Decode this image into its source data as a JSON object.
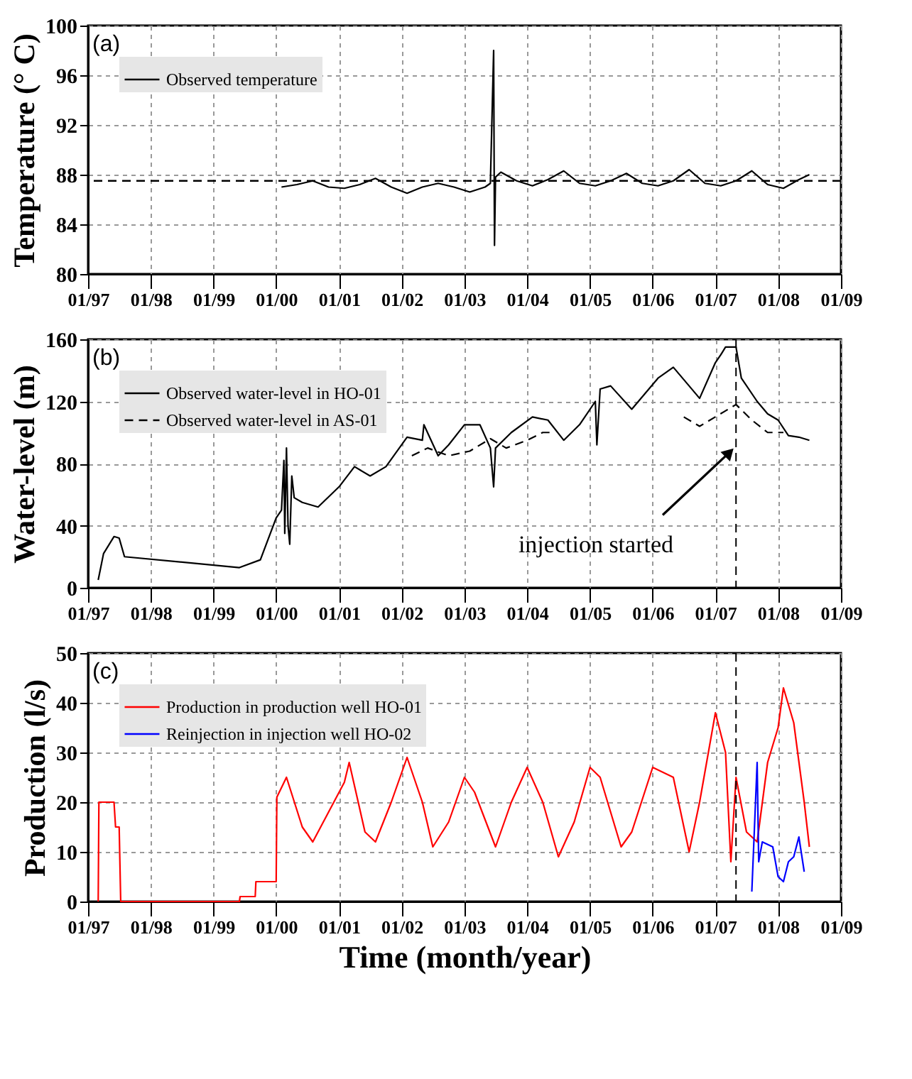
{
  "chart_data": [
    {
      "type": "line",
      "ylabel": "Temperature (° C)",
      "annotations": [
        "(a)"
      ],
      "xlim": [
        "1997-01",
        "2009-01"
      ],
      "xticks": [
        {
          "value": "1997-01",
          "label": "01/97"
        },
        {
          "value": "1998-01",
          "label": "01/98"
        },
        {
          "value": "1999-01",
          "label": "01/99"
        },
        {
          "value": "2000-01",
          "label": "01/00"
        },
        {
          "value": "2001-01",
          "label": "01/01"
        },
        {
          "value": "2002-01",
          "label": "01/02"
        },
        {
          "value": "2003-01",
          "label": "01/03"
        },
        {
          "value": "2004-01",
          "label": "01/04"
        },
        {
          "value": "2005-01",
          "label": "01/05"
        },
        {
          "value": "2006-01",
          "label": "01/06"
        },
        {
          "value": "2007-01",
          "label": "01/07"
        },
        {
          "value": "2008-01",
          "label": "01/08"
        },
        {
          "value": "2009-01",
          "label": "01/09"
        }
      ],
      "ylim": [
        80,
        100
      ],
      "yticks": [
        80,
        84,
        88,
        92,
        96,
        100
      ],
      "grid": true,
      "legend": "top left",
      "marker": "none",
      "ref_lines": [
        {
          "axis": "y",
          "value": 87.5,
          "color": "#000000",
          "line_style": "dashed"
        }
      ],
      "series": [
        {
          "name": "Observed temperature",
          "color": "#000000",
          "line_style": "solid",
          "x": [
            "2000-02",
            "2000-05",
            "2000-08",
            "2000-11",
            "2001-02",
            "2001-05",
            "2001-08",
            "2001-11",
            "2002-02",
            "2002-05",
            "2002-08",
            "2002-11",
            "2003-02",
            "2003-05",
            "2003-06",
            "2003-06-20",
            "2003-06-25",
            "2003-07",
            "2003-08",
            "2003-11",
            "2004-02",
            "2004-05",
            "2004-08",
            "2004-11",
            "2005-02",
            "2005-05",
            "2005-08",
            "2005-11",
            "2006-02",
            "2006-05",
            "2006-08",
            "2006-11",
            "2007-02",
            "2007-05",
            "2007-08",
            "2007-11",
            "2008-02",
            "2008-05",
            "2008-07"
          ],
          "values": [
            87.0,
            87.2,
            87.5,
            87.0,
            86.9,
            87.2,
            87.7,
            87.0,
            86.5,
            87.0,
            87.3,
            87.0,
            86.6,
            87.0,
            87.3,
            98.0,
            82.3,
            87.8,
            88.2,
            87.5,
            87.1,
            87.6,
            88.3,
            87.3,
            87.1,
            87.5,
            88.1,
            87.3,
            87.1,
            87.5,
            88.4,
            87.3,
            87.1,
            87.5,
            88.3,
            87.2,
            86.9,
            87.6,
            88.0
          ]
        }
      ]
    },
    {
      "type": "line",
      "ylabel": "Water-level (m)",
      "annotations": [
        "(b)",
        {
          "text": "injection started",
          "x": "2007-04",
          "y": 88
        }
      ],
      "xlim": [
        "1997-01",
        "2009-01"
      ],
      "xticks": [
        {
          "value": "1997-01",
          "label": "01/97"
        },
        {
          "value": "1998-01",
          "label": "01/98"
        },
        {
          "value": "1999-01",
          "label": "01/99"
        },
        {
          "value": "2000-01",
          "label": "01/00"
        },
        {
          "value": "2001-01",
          "label": "01/01"
        },
        {
          "value": "2002-01",
          "label": "01/02"
        },
        {
          "value": "2003-01",
          "label": "01/03"
        },
        {
          "value": "2004-01",
          "label": "01/04"
        },
        {
          "value": "2005-01",
          "label": "01/05"
        },
        {
          "value": "2006-01",
          "label": "01/06"
        },
        {
          "value": "2007-01",
          "label": "01/07"
        },
        {
          "value": "2008-01",
          "label": "01/08"
        },
        {
          "value": "2009-01",
          "label": "01/09"
        }
      ],
      "ylim": [
        0,
        160
      ],
      "yticks": [
        0,
        40,
        80,
        120,
        160
      ],
      "grid": true,
      "legend": "top left",
      "marker": "none",
      "ref_lines": [
        {
          "axis": "x",
          "value": "2007-05",
          "color": "#000000",
          "line_style": "dashed"
        }
      ],
      "series": [
        {
          "name": "Observed water-level in HO-01",
          "color": "#000000",
          "line_style": "solid",
          "x": [
            "1997-03",
            "1997-04",
            "1997-06",
            "1997-07",
            "1997-08",
            "1999-06",
            "1999-10",
            "2000-01",
            "2000-02",
            "2000-02-15",
            "2000-02-20",
            "2000-03",
            "2000-03-10",
            "2000-03-20",
            "2000-04",
            "2000-04-15",
            "2000-06",
            "2000-09",
            "2001-01",
            "2001-04",
            "2001-07",
            "2001-10",
            "2002-02",
            "2002-05",
            "2002-05-10",
            "2002-08",
            "2002-10",
            "2003-01",
            "2003-04",
            "2003-06",
            "2003-06-20",
            "2003-07",
            "2003-10",
            "2004-02",
            "2004-05",
            "2004-08",
            "2004-11",
            "2005-02",
            "2005-02-10",
            "2005-03",
            "2005-05",
            "2005-09",
            "2006-02",
            "2006-05",
            "2006-08",
            "2006-10",
            "2007-01",
            "2007-02",
            "2007-03",
            "2007-05",
            "2007-06",
            "2007-09",
            "2007-11",
            "2008-01",
            "2008-03",
            "2008-05",
            "2008-07"
          ],
          "values": [
            5,
            22,
            33,
            32,
            20,
            13,
            18,
            45,
            50,
            82,
            35,
            90,
            40,
            28,
            72,
            58,
            55,
            52,
            65,
            78,
            72,
            78,
            97,
            95,
            105,
            85,
            92,
            105,
            105,
            90,
            65,
            90,
            100,
            110,
            108,
            95,
            105,
            120,
            92,
            128,
            130,
            115,
            135,
            142,
            130,
            122,
            145,
            150,
            155,
            155,
            135,
            120,
            112,
            108,
            98,
            97,
            95
          ]
        },
        {
          "name": "Observed water-level in AS-01",
          "color": "#000000",
          "line_style": "dashed",
          "x": [
            "2002-03",
            "2002-06",
            "2002-10",
            "2003-02",
            "2003-06",
            "2003-09",
            "2004-01",
            "2004-04",
            "2004-06",
            "2005-06",
            "2006-07",
            "2006-10",
            "2007-05",
            "2007-08",
            "2007-11",
            "2008-02"
          ],
          "values": [
            85,
            90,
            85,
            88,
            96,
            90,
            95,
            100,
            100,
            null,
            110,
            104,
            118,
            108,
            100,
            100
          ]
        }
      ]
    },
    {
      "type": "line",
      "ylabel": "Production (l/s)",
      "xlabel": "Time (month/year)",
      "annotations": [
        "(c)"
      ],
      "xlim": [
        "1997-01",
        "2009-01"
      ],
      "xticks": [
        {
          "value": "1997-01",
          "label": "01/97"
        },
        {
          "value": "1998-01",
          "label": "01/98"
        },
        {
          "value": "1999-01",
          "label": "01/99"
        },
        {
          "value": "2000-01",
          "label": "01/00"
        },
        {
          "value": "2001-01",
          "label": "01/01"
        },
        {
          "value": "2002-01",
          "label": "01/02"
        },
        {
          "value": "2003-01",
          "label": "01/03"
        },
        {
          "value": "2004-01",
          "label": "01/04"
        },
        {
          "value": "2005-01",
          "label": "01/05"
        },
        {
          "value": "2006-01",
          "label": "01/06"
        },
        {
          "value": "2007-01",
          "label": "01/07"
        },
        {
          "value": "2008-01",
          "label": "01/08"
        },
        {
          "value": "2009-01",
          "label": "01/09"
        }
      ],
      "ylim": [
        0,
        50
      ],
      "yticks": [
        0,
        10,
        20,
        30,
        40,
        50
      ],
      "grid": true,
      "legend": "top left",
      "marker": "none",
      "ref_lines": [
        {
          "axis": "x",
          "value": "2007-05",
          "color": "#000000",
          "line_style": "dashed"
        }
      ],
      "series": [
        {
          "name": "Production in production well HO-01",
          "color": "#ff0000",
          "line_style": "solid",
          "x": [
            "1997-03",
            "1997-03-05",
            "1997-06",
            "1997-06-10",
            "1997-07",
            "1997-07-10",
            "1999-06",
            "1999-06-05",
            "1999-09",
            "1999-09-05",
            "1999-12",
            "2000-01",
            "2000-01-05",
            "2000-03",
            "2000-06",
            "2000-08",
            "2000-11",
            "2001-02",
            "2001-03",
            "2001-06",
            "2001-08",
            "2001-11",
            "2002-02",
            "2002-05",
            "2002-07",
            "2002-10",
            "2003-01",
            "2003-03",
            "2003-07",
            "2003-10",
            "2004-01",
            "2004-04",
            "2004-07",
            "2004-10",
            "2005-01",
            "2005-03",
            "2005-07",
            "2005-09",
            "2006-01",
            "2006-05",
            "2006-08",
            "2006-10",
            "2007-01",
            "2007-03",
            "2007-04",
            "2007-05",
            "2007-07",
            "2007-09",
            "2007-11",
            "2008-01",
            "2008-02",
            "2008-04",
            "2008-06",
            "2008-07"
          ],
          "values": [
            0,
            20,
            20,
            15,
            15,
            0,
            0,
            1,
            1,
            4,
            4,
            4,
            21,
            25,
            15,
            12,
            18,
            24,
            28,
            14,
            12,
            20,
            29,
            20,
            11,
            16,
            25,
            22,
            11,
            20,
            27,
            20,
            9,
            16,
            27,
            25,
            11,
            14,
            27,
            25,
            10,
            20,
            38,
            30,
            8,
            25,
            14,
            12,
            28,
            35,
            43,
            36,
            20,
            11
          ]
        },
        {
          "name": "Reinjection in injection well  HO-02",
          "color": "#0000ff",
          "line_style": "solid",
          "x": [
            "2007-08",
            "2007-09",
            "2007-09-10",
            "2007-10",
            "2007-12",
            "2008-01",
            "2008-02",
            "2008-03",
            "2008-04",
            "2008-05",
            "2008-06"
          ],
          "values": [
            2,
            28,
            8,
            12,
            11,
            5,
            4,
            8,
            9,
            13,
            6
          ]
        }
      ]
    }
  ]
}
